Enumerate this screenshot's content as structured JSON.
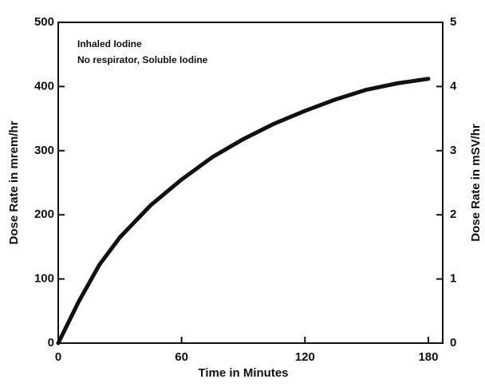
{
  "chart_data": {
    "type": "line",
    "annotations": [
      "Inhaled Iodine",
      "No respirator, Soluble Iodine"
    ],
    "x_label": "Time in Minutes",
    "y_label": "Dose Rate in mrem/hr",
    "y2_label": "Dose Rate in mSV/hr",
    "x": [
      0,
      10,
      20,
      30,
      45,
      60,
      75,
      90,
      105,
      120,
      135,
      150,
      165,
      180
    ],
    "series": [
      {
        "color": "#111111",
        "values": [
          0,
          65,
          122,
          165,
          215,
          255,
          290,
          318,
          342,
          362,
          380,
          395,
          405,
          412
        ]
      }
    ],
    "xlim": [
      0,
      187
    ],
    "xticks": [
      0,
      60,
      120,
      180
    ],
    "ylim": [
      0,
      500
    ],
    "yticks": [
      0,
      100,
      200,
      300,
      400,
      500
    ],
    "y2lim": [
      0,
      5
    ],
    "y2ticks": [
      0,
      1,
      2,
      3,
      4,
      5
    ]
  }
}
